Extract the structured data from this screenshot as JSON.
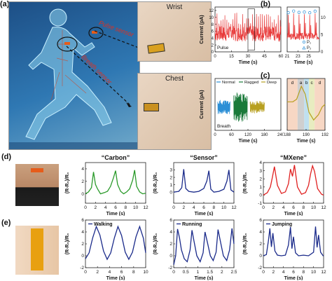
{
  "panels": {
    "a": "(a)",
    "b": "(b)",
    "c": "(c)",
    "d": "(d)",
    "e": "(e)"
  },
  "panel_a": {
    "wrist_label": "Wrist",
    "chest_label": "Chest",
    "pulse_sensor_label": "Pulse sensor",
    "breath_sensor_label": "Breath sensor"
  },
  "chart_data": [
    {
      "id": "b_main",
      "type": "line",
      "ylabel": "Current (pA)",
      "xlabel": "Time (s)",
      "series_label": "Pulse",
      "xlim": [
        0,
        60
      ],
      "ylim": [
        0,
        13
      ],
      "xticks": [
        0,
        15,
        30,
        45,
        60
      ],
      "yticks": [
        0,
        2,
        4,
        6,
        8,
        10,
        12
      ],
      "color": "#e83b3b"
    },
    {
      "id": "b_zoom",
      "type": "line",
      "xlabel": "Time (s)",
      "xlim": [
        21,
        27
      ],
      "ylim": [
        0,
        13
      ],
      "xticks": [
        21,
        23,
        25
      ],
      "yticks": [
        0,
        5,
        10
      ],
      "legend": [
        "P₁",
        "P₂"
      ],
      "color": "#e83b3b"
    },
    {
      "id": "c_main",
      "type": "line",
      "ylabel": "Current (pA)",
      "xlabel": "Time (s)",
      "series_label": "Breath",
      "xlim": [
        0,
        240
      ],
      "xticks": [
        0,
        60,
        120,
        180,
        240
      ],
      "legend": [
        "Normal",
        "Ragged",
        "Deep"
      ],
      "colors": [
        "#2c8fd6",
        "#1a7a3a",
        "#b8a020"
      ]
    },
    {
      "id": "c_zoom",
      "type": "line",
      "xlabel": "Time (s)",
      "xlim": [
        188,
        192
      ],
      "xticks": [
        188,
        190,
        192
      ],
      "regions": [
        "d",
        "a",
        "b",
        "c",
        "d"
      ],
      "region_colors": [
        "#f7d7c4",
        "#cfcfcf",
        "#bfe0f0",
        "#e8ecc0",
        "#f7d7c4"
      ],
      "color": "#b8a020"
    },
    {
      "id": "d1",
      "type": "line",
      "title": "“Carbon”",
      "ylabel": "(R-R₀)/R₀",
      "xlabel": "Time (s)",
      "xlim": [
        0,
        12
      ],
      "ylim": [
        -1.5,
        5
      ],
      "xticks": [
        0,
        2,
        4,
        6,
        8,
        10,
        12
      ],
      "yticks": [
        0,
        2,
        4
      ],
      "color": "#2a9a2a",
      "x": [
        0,
        0.6,
        1.2,
        1.6,
        2,
        2.4,
        3,
        3.8,
        4.4,
        5,
        5.6,
        6,
        6.4,
        7,
        7.6,
        8.2,
        8.8,
        9.4,
        9.8,
        10.2,
        10.8,
        11.4,
        12
      ],
      "y": [
        0,
        0.3,
        1,
        3.5,
        1.5,
        0.8,
        0,
        0.2,
        0.4,
        1.2,
        2.6,
        3.7,
        1.5,
        0.4,
        0,
        0.3,
        0.8,
        2.2,
        3.8,
        1.2,
        0.3,
        0,
        0.1
      ]
    },
    {
      "id": "d2",
      "type": "line",
      "title": "“Sensor”",
      "ylabel": "(R-R₀)/R₀",
      "xlabel": "Time (s)",
      "xlim": [
        0,
        12
      ],
      "ylim": [
        -1.5,
        4
      ],
      "xticks": [
        0,
        2,
        4,
        6,
        8,
        10,
        12
      ],
      "yticks": [
        0,
        1,
        2,
        3
      ],
      "color": "#1a2a8a",
      "x": [
        0,
        1,
        1.6,
        2,
        2.4,
        3,
        4,
        5,
        6,
        6.6,
        7,
        7.4,
        8,
        9,
        10,
        10.6,
        11,
        11.4,
        12
      ],
      "y": [
        0,
        0.1,
        0.6,
        3.1,
        0.5,
        0.1,
        0,
        0.1,
        0.5,
        1.5,
        2.9,
        0.4,
        0,
        0.1,
        0.4,
        1.5,
        3,
        0.3,
        0
      ]
    },
    {
      "id": "d3",
      "type": "line",
      "title": "“MXene”",
      "ylabel": "(R-R₀)/R₀",
      "xlabel": "Time (s)",
      "xlim": [
        0,
        12
      ],
      "ylim": [
        -1,
        4
      ],
      "xticks": [
        0,
        2,
        4,
        6,
        8,
        10,
        12
      ],
      "yticks": [
        -1,
        0,
        1,
        2,
        3,
        4
      ],
      "color": "#e02020",
      "x": [
        0,
        0.8,
        1.4,
        1.8,
        2.2,
        2.8,
        3.6,
        4.4,
        5,
        5.4,
        5.8,
        6.2,
        6.8,
        7.6,
        8.4,
        9,
        9.4,
        9.8,
        10.2,
        10.8,
        11.6,
        12
      ],
      "y": [
        0,
        0.3,
        1,
        2.2,
        3.5,
        1.2,
        0.2,
        0.4,
        1.4,
        3.2,
        2.3,
        3.7,
        1,
        0.1,
        0.3,
        1.2,
        2.6,
        3.6,
        2.9,
        0.8,
        0.1,
        0
      ]
    },
    {
      "id": "e1",
      "type": "line",
      "title": "Walking",
      "ylabel": "(R-R₀)/R₀",
      "xlabel": "Time (s)",
      "xlim": [
        0,
        10
      ],
      "ylim": [
        -2,
        6
      ],
      "xticks": [
        0,
        2,
        4,
        6,
        8,
        10
      ],
      "yticks": [
        -2,
        0,
        2,
        4,
        6
      ],
      "color": "#1a2a8a",
      "x": [
        0,
        0.6,
        1.2,
        1.8,
        2.4,
        3,
        3.6,
        4.2,
        4.8,
        5.4,
        6,
        6.6,
        7.2,
        7.8,
        8.4,
        9,
        9.6,
        10
      ],
      "y": [
        -0.5,
        0.5,
        3,
        4.9,
        3.5,
        0.8,
        -0.6,
        0.5,
        3,
        4.9,
        3.4,
        0.6,
        -0.6,
        0.6,
        3.2,
        4.9,
        3,
        0.5
      ]
    },
    {
      "id": "e2",
      "type": "line",
      "title": "Running",
      "ylabel": "(R-R₀)/R₀",
      "xlabel": "Time (s)",
      "xlim": [
        0,
        2.5
      ],
      "ylim": [
        -2,
        6
      ],
      "xticks": [
        0,
        0.5,
        1,
        1.5,
        2,
        2.5
      ],
      "yticks": [
        -2,
        0,
        2,
        4,
        6
      ],
      "color": "#1a2a8a",
      "x": [
        0,
        0.08,
        0.16,
        0.24,
        0.32,
        0.44,
        0.56,
        0.68,
        0.76,
        0.84,
        0.96,
        1.1,
        1.22,
        1.3,
        1.4,
        1.52,
        1.64,
        1.76,
        1.84,
        1.94,
        2.06,
        2.2,
        2.32,
        2.42,
        2.5
      ],
      "y": [
        -1.5,
        0,
        4.5,
        3,
        1,
        -0.5,
        -1,
        1,
        4.3,
        2.5,
        0,
        -1,
        0.5,
        4,
        2.2,
        0,
        -0.8,
        0.6,
        4.4,
        2.4,
        0,
        -0.8,
        1,
        4.6,
        2
      ]
    },
    {
      "id": "e3",
      "type": "line",
      "title": "Jumping",
      "ylabel": "(R-R₀)/R₀",
      "xlabel": "Time (s)",
      "xlim": [
        0,
        12
      ],
      "ylim": [
        -2,
        6
      ],
      "xticks": [
        0,
        2,
        4,
        6,
        8,
        10,
        12
      ],
      "yticks": [
        -2,
        0,
        2,
        4,
        6
      ],
      "color": "#1a2a8a",
      "x": [
        0,
        0.6,
        1,
        1.3,
        1.6,
        1.9,
        2.3,
        2.8,
        3.6,
        4.4,
        5,
        5.4,
        5.7,
        6,
        6.4,
        7,
        8,
        9,
        10,
        10.4,
        10.7,
        11,
        11.4,
        11.9,
        12
      ],
      "y": [
        0,
        0.2,
        2.5,
        4.6,
        1.5,
        3.8,
        0.8,
        0.1,
        0,
        0.1,
        1.8,
        4.8,
        1.2,
        3.2,
        0.5,
        0,
        0.1,
        0,
        0.6,
        4.9,
        1.4,
        3.5,
        0.6,
        0,
        0
      ]
    }
  ]
}
